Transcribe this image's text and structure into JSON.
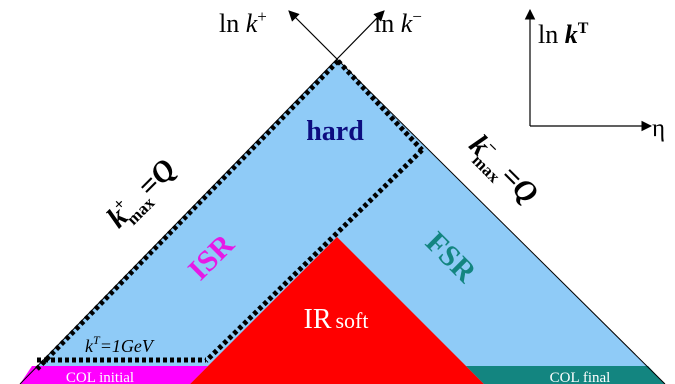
{
  "axes": {
    "k_plus": {
      "prefix": "ln",
      "var": "k",
      "sup": "+"
    },
    "k_minus": {
      "prefix": "ln",
      "var": "k",
      "sup": "−"
    },
    "kt": {
      "prefix": "ln",
      "var": "k",
      "sup": "T"
    },
    "eta": "η"
  },
  "regions": {
    "hard": "hard",
    "isr": "ISR",
    "fsr": "FSR",
    "ir_main": "IR",
    "ir_sub": "soft",
    "col_initial": "COL initial",
    "col_final": "COL final"
  },
  "boundaries": {
    "kplus_max": {
      "var": "k",
      "sup": "+",
      "sub": "max",
      "rhs": "=Q"
    },
    "kminus_max": {
      "var": "k",
      "sup": "−",
      "sub": "max",
      "rhs": "=Q"
    },
    "kt_min": {
      "var": "k",
      "sup": "T",
      "rhs": "=1GeV"
    }
  },
  "colors": {
    "phase_space": "#8fcbf7",
    "ir_soft": "#ff0000",
    "col_initial": "#ff00ff",
    "col_final": "#138580",
    "hard_text": "#0d0d80",
    "isr_text": "#e619e6",
    "fsr_text": "#138580"
  }
}
